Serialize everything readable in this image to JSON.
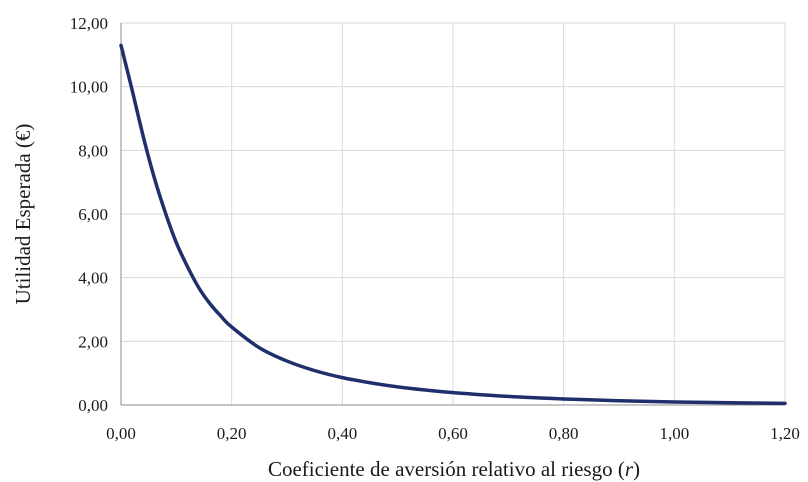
{
  "chart_data": {
    "type": "line",
    "title": "",
    "xlabel": "Coeficiente de aversión relativo al riesgo (",
    "xlabel_symbol": "r",
    "xlabel_suffix": ")",
    "ylabel": "Utilidad Esperada (€)",
    "xlim": [
      0,
      1.2
    ],
    "ylim": [
      0,
      12
    ],
    "x_ticks": [
      "0,00",
      "0,20",
      "0,40",
      "0,60",
      "0,80",
      "1,00",
      "1,20"
    ],
    "y_ticks": [
      "0,00",
      "2,00",
      "4,00",
      "6,00",
      "8,00",
      "10,00",
      "12,00"
    ],
    "grid": true,
    "legend": "none",
    "series": [
      {
        "color": "#1f2f6b",
        "points": [
          [
            0.0,
            11.3
          ],
          [
            0.02,
            9.9
          ],
          [
            0.04,
            8.45
          ],
          [
            0.06,
            7.15
          ],
          [
            0.08,
            6.05
          ],
          [
            0.1,
            5.1
          ],
          [
            0.12,
            4.35
          ],
          [
            0.14,
            3.7
          ],
          [
            0.16,
            3.2
          ],
          [
            0.18,
            2.8
          ],
          [
            0.2,
            2.45
          ],
          [
            0.25,
            1.8
          ],
          [
            0.3,
            1.38
          ],
          [
            0.35,
            1.08
          ],
          [
            0.4,
            0.86
          ],
          [
            0.45,
            0.7
          ],
          [
            0.5,
            0.57
          ],
          [
            0.55,
            0.47
          ],
          [
            0.6,
            0.39
          ],
          [
            0.7,
            0.27
          ],
          [
            0.8,
            0.19
          ],
          [
            0.9,
            0.135
          ],
          [
            1.0,
            0.095
          ],
          [
            1.1,
            0.07
          ],
          [
            1.2,
            0.05
          ]
        ]
      }
    ]
  }
}
